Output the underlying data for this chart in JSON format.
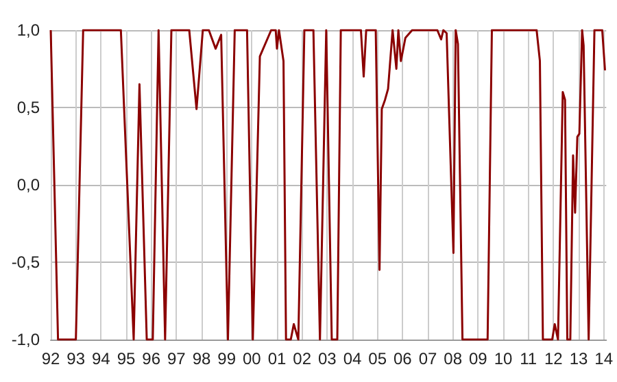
{
  "chart_data": {
    "type": "line",
    "x": [
      1992.0,
      1992.29,
      1993.0,
      1993.29,
      1994.79,
      1995.3,
      1995.53,
      1995.82,
      1996.06,
      1996.29,
      1996.55,
      1996.8,
      1997.51,
      1997.8,
      1998.05,
      1998.29,
      1998.56,
      1998.78,
      1999.05,
      1999.32,
      1999.81,
      2000.04,
      2000.32,
      2000.77,
      2000.95,
      2001.0,
      2001.08,
      2001.26,
      2001.36,
      2001.55,
      2001.67,
      2001.85,
      2002.09,
      2002.45,
      2002.71,
      2002.96,
      2003.18,
      2003.4,
      2003.54,
      2004.34,
      2004.45,
      2004.55,
      2004.93,
      2005.08,
      2005.17,
      2005.3,
      2005.42,
      2005.6,
      2005.75,
      2005.83,
      2005.93,
      2006.11,
      2006.38,
      2007.38,
      2007.53,
      2007.62,
      2007.75,
      2008.02,
      2008.11,
      2008.2,
      2008.38,
      2009.38,
      2009.55,
      2011.33,
      2011.46,
      2011.58,
      2011.95,
      2012.05,
      2012.18,
      2012.37,
      2012.46,
      2012.55,
      2012.67,
      2012.78,
      2012.86,
      2012.95,
      2013.03,
      2013.14,
      2013.2,
      2013.4,
      2013.63,
      2013.94,
      2014.05
    ],
    "series": [
      {
        "color": "#8b0000",
        "values": [
          1,
          -1,
          -1,
          1,
          1,
          -1,
          0.65,
          -1,
          -1,
          1,
          -1,
          1,
          1,
          0.49,
          1,
          1,
          0.88,
          0.97,
          -1,
          1,
          1,
          -1,
          0.83,
          1,
          1,
          0.88,
          1,
          0.8,
          -1,
          -1,
          -0.9,
          -1,
          1,
          1,
          -1,
          1,
          -1,
          -1,
          1,
          1,
          0.7,
          1,
          1,
          -0.55,
          0.49,
          0.55,
          0.62,
          1,
          0.75,
          1,
          0.8,
          0.95,
          1,
          1,
          0.94,
          1,
          0.98,
          -0.44,
          1,
          0.91,
          -1,
          -1,
          1,
          1,
          0.8,
          -1,
          -1,
          -0.9,
          -1,
          0.6,
          0.55,
          -1,
          -1,
          0.19,
          -0.18,
          0.31,
          0.33,
          1,
          0.9,
          -1,
          1,
          1,
          0.74
        ]
      }
    ],
    "xlim": [
      1992,
      2014.1
    ],
    "xticks": [
      {
        "value": 1992,
        "label": "92"
      },
      {
        "value": 1993,
        "label": "93"
      },
      {
        "value": 1994,
        "label": "94"
      },
      {
        "value": 1995,
        "label": "95"
      },
      {
        "value": 1996,
        "label": "96"
      },
      {
        "value": 1997,
        "label": "97"
      },
      {
        "value": 1998,
        "label": "98"
      },
      {
        "value": 1999,
        "label": "99"
      },
      {
        "value": 2000,
        "label": "00"
      },
      {
        "value": 2001,
        "label": "01"
      },
      {
        "value": 2002,
        "label": "02"
      },
      {
        "value": 2003,
        "label": "03"
      },
      {
        "value": 2004,
        "label": "04"
      },
      {
        "value": 2005,
        "label": "05"
      },
      {
        "value": 2006,
        "label": "06"
      },
      {
        "value": 2007,
        "label": "07"
      },
      {
        "value": 2008,
        "label": "08"
      },
      {
        "value": 2009,
        "label": "09"
      },
      {
        "value": 2010,
        "label": "10"
      },
      {
        "value": 2011,
        "label": "11"
      },
      {
        "value": 2012,
        "label": "12"
      },
      {
        "value": 2013,
        "label": "13"
      },
      {
        "value": 2014,
        "label": "14"
      }
    ],
    "ylim": [
      -1,
      1
    ],
    "yticks": [
      {
        "value": -1,
        "label": "-1,0"
      },
      {
        "value": -0.5,
        "label": "-0,5"
      },
      {
        "value": 0,
        "label": "0,0"
      },
      {
        "value": 0.5,
        "label": "0,5"
      },
      {
        "value": 1,
        "label": "1,0"
      }
    ],
    "grid": true,
    "marker": "none",
    "line_style": "solid"
  }
}
